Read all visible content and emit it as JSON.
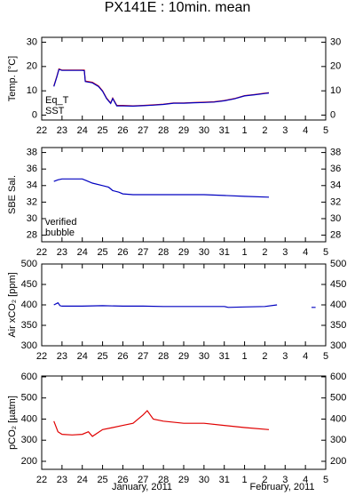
{
  "title": "PX141E : 10min. mean",
  "chart_data": [
    {
      "type": "line",
      "ylabel": "Temp. [°C]",
      "legend": "lower left",
      "xlim": [
        22,
        36
      ],
      "xticks": [
        22,
        23,
        24,
        25,
        26,
        27,
        28,
        29,
        30,
        31,
        {
          "value": 32,
          "label": "1"
        },
        {
          "value": 33,
          "label": "2"
        },
        {
          "value": 34,
          "label": "3"
        },
        {
          "value": 35,
          "label": "4"
        },
        {
          "value": 36,
          "label": "5"
        }
      ],
      "ylim": [
        -2,
        32
      ],
      "yticks": [
        0,
        10,
        20,
        30
      ],
      "x": [
        22.6,
        22.75,
        22.85,
        23.0,
        23.5,
        24.0,
        24.1,
        24.15,
        24.5,
        24.8,
        25.0,
        25.2,
        25.4,
        25.5,
        25.7,
        26.0,
        26.5,
        27.0,
        27.5,
        28.0,
        28.5,
        29.0,
        29.5,
        30.0,
        30.5,
        31.0,
        31.5,
        32.0,
        32.5,
        33.0,
        33.2
      ],
      "series": [
        {
          "name": "Eq_T",
          "color": "#e00000",
          "values": [
            12,
            16,
            19,
            18.5,
            18.5,
            18.5,
            18.5,
            14,
            13.5,
            12,
            10,
            7,
            5,
            7,
            4,
            4,
            3.8,
            4,
            4.2,
            4.5,
            5,
            5,
            5.2,
            5.3,
            5.5,
            6,
            6.8,
            8,
            8.5,
            9,
            9.2
          ]
        },
        {
          "name": "SST",
          "color": "#0000c0",
          "values": [
            11.8,
            15.8,
            18.8,
            18.4,
            18.4,
            18.4,
            18.3,
            13.8,
            13.3,
            11.8,
            9.8,
            6.8,
            4.8,
            6.8,
            3.8,
            3.8,
            3.7,
            3.9,
            4.1,
            4.4,
            4.9,
            4.9,
            5.1,
            5.2,
            5.4,
            5.9,
            6.7,
            7.9,
            8.4,
            8.9,
            9.1
          ]
        }
      ]
    },
    {
      "type": "line",
      "ylabel": "SBE Sal.",
      "legend": "lower left",
      "xlim": [
        22,
        36
      ],
      "xticks": [
        22,
        23,
        24,
        25,
        26,
        27,
        28,
        29,
        30,
        31,
        {
          "value": 32,
          "label": "1"
        },
        {
          "value": 33,
          "label": "2"
        },
        {
          "value": 34,
          "label": "3"
        },
        {
          "value": 35,
          "label": "4"
        },
        {
          "value": 36,
          "label": "5"
        }
      ],
      "ylim": [
        27.2,
        38.6
      ],
      "yticks": [
        28,
        30,
        32,
        34,
        36,
        38
      ],
      "x": [
        22.6,
        22.8,
        23.0,
        23.5,
        24.0,
        24.2,
        24.5,
        25.0,
        25.3,
        25.5,
        25.8,
        26.0,
        26.5,
        27.0,
        28.0,
        29.0,
        30.0,
        31.0,
        32.0,
        33.2
      ],
      "series": [
        {
          "name": "verified",
          "color": "#0000c0",
          "values": [
            34.5,
            34.7,
            34.8,
            34.8,
            34.8,
            34.6,
            34.3,
            34.0,
            33.8,
            33.4,
            33.2,
            33.0,
            32.9,
            32.9,
            32.9,
            32.9,
            32.9,
            32.8,
            32.7,
            32.6
          ]
        },
        {
          "name": "bubble",
          "color": "#d000d0",
          "values": [
            null,
            null,
            null,
            null,
            null,
            null,
            null,
            null,
            null,
            null,
            null,
            null,
            null,
            null,
            null,
            null,
            null,
            null,
            null,
            null
          ]
        }
      ]
    },
    {
      "type": "line",
      "ylabel": "Air xCO₂ [ppm]",
      "xlim": [
        22,
        36
      ],
      "xticks": [
        22,
        23,
        24,
        25,
        26,
        27,
        28,
        29,
        30,
        31,
        {
          "value": 32,
          "label": "1"
        },
        {
          "value": 33,
          "label": "2"
        },
        {
          "value": 34,
          "label": "3"
        },
        {
          "value": 35,
          "label": "4"
        },
        {
          "value": 36,
          "label": "5"
        }
      ],
      "ylim": [
        300,
        500
      ],
      "yticks": [
        300,
        350,
        400,
        450,
        500
      ],
      "x": [
        22.6,
        22.8,
        22.9,
        23.0,
        24.0,
        25.0,
        26.0,
        27.0,
        28.0,
        29.0,
        30.0,
        31.0,
        31.2,
        32.0,
        33.0,
        33.6,
        34.5,
        35.3,
        35.5
      ],
      "series": [
        {
          "color": "#0000c0",
          "values": [
            400,
            405,
            398,
            397,
            397,
            398,
            397,
            397,
            396,
            396,
            396,
            396,
            394,
            395,
            396,
            400,
            null,
            394,
            394
          ]
        }
      ]
    },
    {
      "type": "line",
      "ylabel": "pCO₂ [µatm]",
      "xlim": [
        22,
        36
      ],
      "xticks": [
        22,
        23,
        24,
        25,
        26,
        27,
        28,
        29,
        30,
        31,
        {
          "value": 32,
          "label": "1"
        },
        {
          "value": 33,
          "label": "2"
        },
        {
          "value": 34,
          "label": "3"
        },
        {
          "value": 35,
          "label": "4"
        },
        {
          "value": 36,
          "label": "5"
        }
      ],
      "ylim": [
        162,
        604
      ],
      "yticks": [
        200,
        300,
        400,
        500,
        600
      ],
      "x": [
        22.6,
        22.8,
        23.0,
        23.5,
        24.0,
        24.3,
        24.5,
        25.0,
        25.5,
        26.0,
        26.5,
        27.0,
        27.2,
        27.5,
        28.0,
        29.0,
        30.0,
        31.0,
        32.0,
        33.2
      ],
      "series": [
        {
          "color": "#e00000",
          "values": [
            390,
            340,
            328,
            325,
            328,
            340,
            318,
            350,
            360,
            370,
            380,
            420,
            440,
            400,
            390,
            380,
            380,
            370,
            360,
            350
          ]
        }
      ],
      "annotations": [
        "January, 2011",
        "February, 2011"
      ]
    }
  ]
}
